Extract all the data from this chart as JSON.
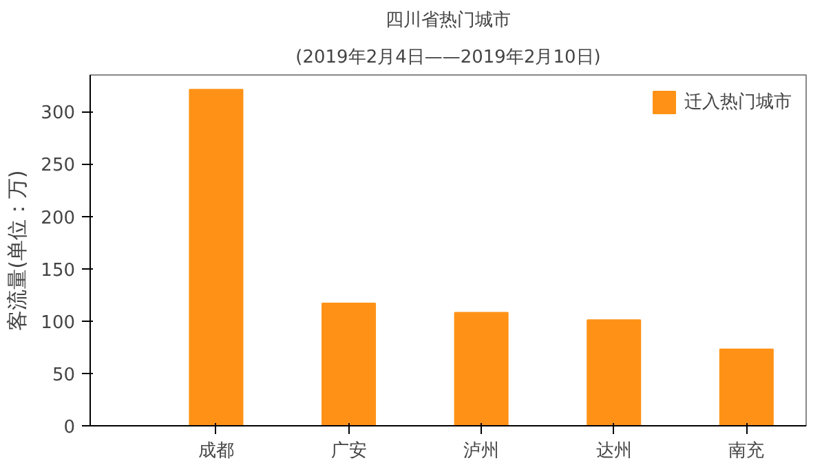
{
  "chart_data": {
    "type": "bar",
    "title": "四川省热门城市",
    "subtitle": "(2019年2月4日——2019年2月10日)",
    "ylabel": "客流量(单位：万)",
    "categories": [
      "成都",
      "广安",
      "泸州",
      "达州",
      "南充"
    ],
    "series": [
      {
        "name": "迁入热门城市",
        "color": "#ff9216",
        "values": [
          321,
          117,
          108,
          101,
          73
        ]
      }
    ],
    "ylim": [
      0,
      335
    ],
    "yticks": [
      0,
      50,
      100,
      150,
      200,
      250,
      300
    ],
    "grid": false,
    "legend": "top right"
  }
}
